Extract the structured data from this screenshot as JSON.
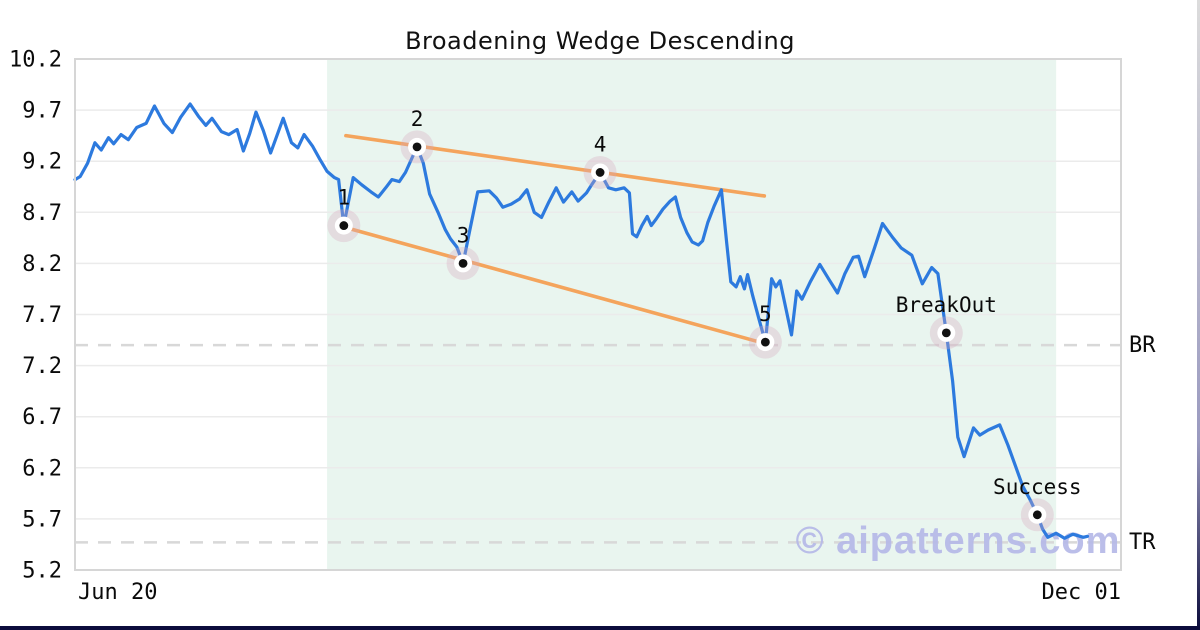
{
  "title": "Broadening Wedge Descending",
  "watermark": "© aipatterns.com",
  "colors": {
    "line": "#2d7ade",
    "trendline": "#f4a45c",
    "pattern_fill": "#e9f5ef",
    "marker_halo": "#d8a8bf",
    "marker_dot": "#111111",
    "dashed_level": "#d8d8d8",
    "grid": "#ebebeb",
    "border": "#d6d6d6",
    "frame": "#0c0c3c",
    "watermark_color": "#b6b9e8"
  },
  "chart_data": {
    "type": "line",
    "title": "Broadening Wedge Descending",
    "grid": true,
    "legend": false,
    "x_axis": {
      "tick_labels": [
        "Jun 20",
        "Dec 01"
      ]
    },
    "y_axis": {
      "ylim": [
        5.2,
        10.2
      ],
      "ticks": [
        10.2,
        9.7,
        9.2,
        8.7,
        8.2,
        7.7,
        7.2,
        6.7,
        6.2,
        5.7,
        5.2
      ]
    },
    "pattern_region_frac": [
      0.241,
      0.938
    ],
    "trendlines": [
      {
        "name": "upper",
        "x1": 0.259,
        "y1": 9.45,
        "x2": 0.659,
        "y2": 8.86
      },
      {
        "name": "lower",
        "x1": 0.259,
        "y1": 8.55,
        "x2": 0.651,
        "y2": 7.44
      }
    ],
    "levels": [
      {
        "label": "BR",
        "value": 7.4
      },
      {
        "label": "TR",
        "value": 5.47
      }
    ],
    "pivots": [
      {
        "label": "1",
        "x": 0.257,
        "y": 8.57
      },
      {
        "label": "2",
        "x": 0.327,
        "y": 9.34
      },
      {
        "label": "3",
        "x": 0.371,
        "y": 8.2
      },
      {
        "label": "4",
        "x": 0.502,
        "y": 9.09
      },
      {
        "label": "5",
        "x": 0.66,
        "y": 7.43
      }
    ],
    "events": [
      {
        "label": "BreakOut",
        "x": 0.833,
        "y": 7.52
      },
      {
        "label": "Success",
        "x": 0.92,
        "y": 5.74
      }
    ],
    "series": [
      {
        "name": "price",
        "points": [
          [
            0.0,
            9.02
          ],
          [
            0.005,
            9.05
          ],
          [
            0.012,
            9.18
          ],
          [
            0.019,
            9.38
          ],
          [
            0.025,
            9.31
          ],
          [
            0.032,
            9.43
          ],
          [
            0.037,
            9.37
          ],
          [
            0.044,
            9.46
          ],
          [
            0.051,
            9.41
          ],
          [
            0.059,
            9.53
          ],
          [
            0.068,
            9.57
          ],
          [
            0.076,
            9.74
          ],
          [
            0.085,
            9.57
          ],
          [
            0.093,
            9.48
          ],
          [
            0.101,
            9.63
          ],
          [
            0.11,
            9.76
          ],
          [
            0.118,
            9.64
          ],
          [
            0.125,
            9.55
          ],
          [
            0.131,
            9.62
          ],
          [
            0.14,
            9.49
          ],
          [
            0.147,
            9.46
          ],
          [
            0.155,
            9.51
          ],
          [
            0.161,
            9.3
          ],
          [
            0.167,
            9.47
          ],
          [
            0.173,
            9.68
          ],
          [
            0.18,
            9.5
          ],
          [
            0.187,
            9.28
          ],
          [
            0.193,
            9.45
          ],
          [
            0.199,
            9.62
          ],
          [
            0.207,
            9.38
          ],
          [
            0.213,
            9.33
          ],
          [
            0.219,
            9.46
          ],
          [
            0.227,
            9.35
          ],
          [
            0.234,
            9.22
          ],
          [
            0.241,
            9.1
          ],
          [
            0.248,
            9.04
          ],
          [
            0.252,
            9.02
          ],
          [
            0.257,
            8.57
          ],
          [
            0.266,
            9.04
          ],
          [
            0.274,
            8.97
          ],
          [
            0.283,
            8.9
          ],
          [
            0.29,
            8.85
          ],
          [
            0.297,
            8.94
          ],
          [
            0.303,
            9.02
          ],
          [
            0.31,
            9.0
          ],
          [
            0.316,
            9.09
          ],
          [
            0.327,
            9.34
          ],
          [
            0.333,
            9.18
          ],
          [
            0.339,
            8.88
          ],
          [
            0.347,
            8.7
          ],
          [
            0.354,
            8.53
          ],
          [
            0.359,
            8.44
          ],
          [
            0.365,
            8.36
          ],
          [
            0.371,
            8.2
          ],
          [
            0.377,
            8.5
          ],
          [
            0.385,
            8.9
          ],
          [
            0.396,
            8.91
          ],
          [
            0.403,
            8.84
          ],
          [
            0.409,
            8.75
          ],
          [
            0.417,
            8.78
          ],
          [
            0.425,
            8.83
          ],
          [
            0.432,
            8.92
          ],
          [
            0.439,
            8.7
          ],
          [
            0.446,
            8.65
          ],
          [
            0.453,
            8.8
          ],
          [
            0.46,
            8.94
          ],
          [
            0.467,
            8.8
          ],
          [
            0.475,
            8.9
          ],
          [
            0.481,
            8.81
          ],
          [
            0.489,
            8.89
          ],
          [
            0.494,
            8.97
          ],
          [
            0.502,
            9.09
          ],
          [
            0.51,
            8.94
          ],
          [
            0.517,
            8.92
          ],
          [
            0.525,
            8.94
          ],
          [
            0.53,
            8.89
          ],
          [
            0.533,
            8.49
          ],
          [
            0.537,
            8.46
          ],
          [
            0.542,
            8.57
          ],
          [
            0.547,
            8.66
          ],
          [
            0.551,
            8.57
          ],
          [
            0.556,
            8.64
          ],
          [
            0.562,
            8.73
          ],
          [
            0.569,
            8.81
          ],
          [
            0.574,
            8.85
          ],
          [
            0.579,
            8.65
          ],
          [
            0.585,
            8.5
          ],
          [
            0.59,
            8.41
          ],
          [
            0.596,
            8.38
          ],
          [
            0.6,
            8.42
          ],
          [
            0.605,
            8.6
          ],
          [
            0.611,
            8.76
          ],
          [
            0.618,
            8.92
          ],
          [
            0.623,
            8.4
          ],
          [
            0.627,
            8.02
          ],
          [
            0.632,
            7.97
          ],
          [
            0.636,
            8.07
          ],
          [
            0.64,
            7.95
          ],
          [
            0.643,
            8.09
          ],
          [
            0.648,
            7.88
          ],
          [
            0.654,
            7.65
          ],
          [
            0.66,
            7.43
          ],
          [
            0.666,
            8.05
          ],
          [
            0.67,
            7.97
          ],
          [
            0.674,
            8.03
          ],
          [
            0.68,
            7.74
          ],
          [
            0.685,
            7.5
          ],
          [
            0.69,
            7.93
          ],
          [
            0.695,
            7.85
          ],
          [
            0.703,
            8.02
          ],
          [
            0.712,
            8.19
          ],
          [
            0.721,
            8.04
          ],
          [
            0.729,
            7.91
          ],
          [
            0.736,
            8.1
          ],
          [
            0.744,
            8.26
          ],
          [
            0.749,
            8.27
          ],
          [
            0.755,
            8.07
          ],
          [
            0.764,
            8.34
          ],
          [
            0.772,
            8.59
          ],
          [
            0.782,
            8.45
          ],
          [
            0.79,
            8.35
          ],
          [
            0.8,
            8.28
          ],
          [
            0.81,
            8.0
          ],
          [
            0.819,
            8.16
          ],
          [
            0.825,
            8.1
          ],
          [
            0.833,
            7.52
          ],
          [
            0.839,
            7.05
          ],
          [
            0.844,
            6.5
          ],
          [
            0.85,
            6.31
          ],
          [
            0.859,
            6.59
          ],
          [
            0.865,
            6.52
          ],
          [
            0.873,
            6.57
          ],
          [
            0.884,
            6.62
          ],
          [
            0.892,
            6.42
          ],
          [
            0.899,
            6.22
          ],
          [
            0.906,
            6.02
          ],
          [
            0.913,
            5.89
          ],
          [
            0.92,
            5.74
          ],
          [
            0.925,
            5.6
          ],
          [
            0.93,
            5.52
          ],
          [
            0.938,
            5.56
          ],
          [
            0.946,
            5.51
          ],
          [
            0.954,
            5.55
          ],
          [
            0.964,
            5.52
          ],
          [
            0.968,
            5.53
          ]
        ]
      }
    ]
  }
}
